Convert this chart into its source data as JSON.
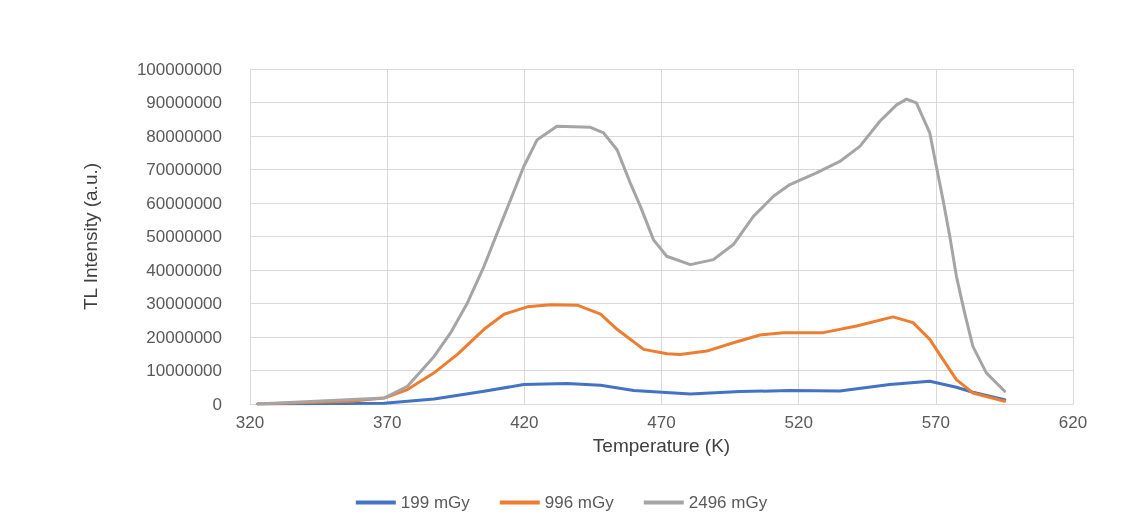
{
  "chart_data": {
    "type": "line",
    "xlabel": "Temperature (K)",
    "ylabel": "TL Intensity (a.u.)",
    "xlim": [
      320,
      620
    ],
    "xticks": [
      320,
      370,
      420,
      470,
      520,
      570,
      620
    ],
    "ylim": [
      0,
      100000000
    ],
    "yticks": [
      0,
      10000000,
      20000000,
      30000000,
      40000000,
      50000000,
      60000000,
      70000000,
      80000000,
      90000000,
      100000000
    ],
    "grid": true,
    "legend": "bottom",
    "marker": "none",
    "line_style": "solid",
    "series": [
      {
        "name": "199 mGy",
        "color": "#4472c4",
        "x": [
          322.8,
          368.9,
          387.1,
          405.3,
          419.8,
          435.6,
          447.8,
          459.9,
          480.5,
          498.7,
          516.8,
          535,
          553.2,
          567.8,
          577.5,
          583.5,
          595.1
        ],
        "values": [
          0,
          200000,
          1500000,
          3800000,
          5800000,
          6100000,
          5600000,
          4000000,
          3000000,
          3700000,
          4000000,
          3900000,
          5800000,
          6800000,
          5000000,
          3500000,
          1300000
        ]
      },
      {
        "name": "996 mGy",
        "color": "#ed7d31",
        "x": [
          322.8,
          356.7,
          368.9,
          377.4,
          387.1,
          395.6,
          405.3,
          412.6,
          421.1,
          429.6,
          439.3,
          447.8,
          453.8,
          463.5,
          472,
          476.8,
          486.5,
          496.2,
          505.9,
          514.4,
          529,
          541.1,
          554.4,
          561.7,
          567.8,
          572.6,
          577.5,
          583.5,
          595.1
        ],
        "values": [
          0,
          800000,
          1800000,
          4300000,
          9300000,
          14800000,
          22300000,
          26800000,
          29000000,
          29600000,
          29500000,
          26800000,
          22300000,
          16300000,
          15000000,
          14800000,
          15800000,
          18300000,
          20600000,
          21300000,
          21300000,
          23300000,
          26000000,
          24300000,
          19300000,
          13300000,
          7300000,
          3300000,
          800000
        ]
      },
      {
        "name": "2496 mGy",
        "color": "#a5a5a5",
        "x": [
          322.8,
          368.9,
          377.4,
          387.1,
          393.1,
          399.2,
          405.3,
          410.1,
          415,
          419.8,
          424.7,
          431.9,
          444.1,
          448.9,
          453.8,
          458.6,
          462.3,
          467.1,
          471.9,
          480.5,
          488.9,
          496.2,
          503.5,
          510.8,
          516.8,
          526.5,
          535,
          542.3,
          549.6,
          555.7,
          559.3,
          562.9,
          567.8,
          570.2,
          572.6,
          575.1,
          577.5,
          580.5,
          583.5,
          588.4,
          595.1
        ],
        "values": [
          0,
          1800000,
          5300000,
          14200000,
          21200000,
          30100000,
          41100000,
          51000000,
          61000000,
          70900000,
          78900000,
          82900000,
          82600000,
          80900000,
          75900000,
          66000000,
          59000000,
          49000000,
          44100000,
          41600000,
          43100000,
          47600000,
          56000000,
          62000000,
          65500000,
          69000000,
          72400000,
          76900000,
          84400000,
          89300000,
          91000000,
          89900000,
          80900000,
          70900000,
          61000000,
          50000000,
          38100000,
          27200000,
          17200000,
          9300000,
          3800000
        ]
      }
    ]
  }
}
